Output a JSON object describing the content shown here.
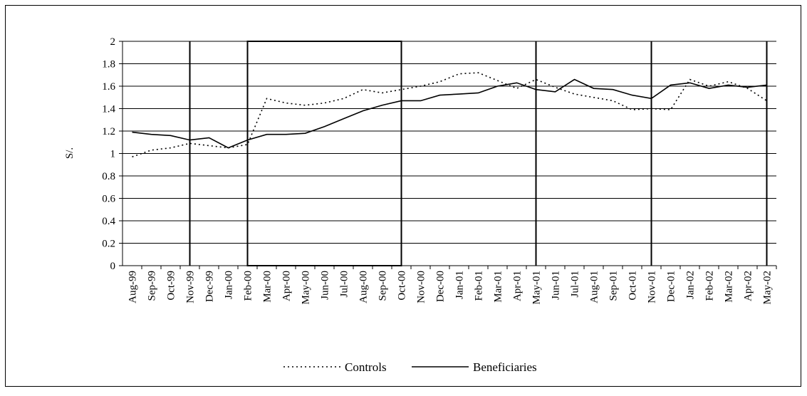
{
  "chart_data": {
    "type": "line",
    "y_label": "S/.",
    "categories": [
      "Aug-99",
      "Sep-99",
      "Oct-99",
      "Nov-99",
      "Dec-99",
      "Jan-00",
      "Feb-00",
      "Mar-00",
      "Apr-00",
      "May-00",
      "Jun-00",
      "Jul-00",
      "Aug-00",
      "Sep-00",
      "Oct-00",
      "Nov-00",
      "Dec-00",
      "Jan-01",
      "Feb-01",
      "Mar-01",
      "Apr-01",
      "May-01",
      "Jun-01",
      "Jul-01",
      "Aug-01",
      "Sep-01",
      "Oct-01",
      "Nov-01",
      "Dec-01",
      "Jan-02",
      "Feb-02",
      "Mar-02",
      "Apr-02",
      "May-02"
    ],
    "series": [
      {
        "name": "Controls",
        "color": "#000000",
        "style": "dotted",
        "values": [
          0.97,
          1.03,
          1.05,
          1.09,
          1.07,
          1.05,
          1.08,
          1.49,
          1.45,
          1.43,
          1.45,
          1.49,
          1.57,
          1.54,
          1.57,
          1.6,
          1.64,
          1.71,
          1.72,
          1.65,
          1.58,
          1.66,
          1.59,
          1.53,
          1.5,
          1.47,
          1.39,
          1.4,
          1.39,
          1.66,
          1.6,
          1.64,
          1.58,
          1.47
        ]
      },
      {
        "name": "Beneficiaries",
        "color": "#000000",
        "style": "solid",
        "values": [
          1.19,
          1.17,
          1.16,
          1.12,
          1.14,
          1.05,
          1.12,
          1.17,
          1.17,
          1.18,
          1.24,
          1.31,
          1.38,
          1.43,
          1.47,
          1.47,
          1.52,
          1.53,
          1.54,
          1.6,
          1.63,
          1.57,
          1.55,
          1.66,
          1.58,
          1.57,
          1.52,
          1.49,
          1.61,
          1.63,
          1.58,
          1.61,
          1.59,
          1.61
        ]
      }
    ],
    "ylim": [
      0,
      2
    ],
    "yticks": [
      0,
      0.2,
      0.4,
      0.6,
      0.8,
      1,
      1.2,
      1.4,
      1.6,
      1.8,
      2
    ],
    "grid": true
  }
}
